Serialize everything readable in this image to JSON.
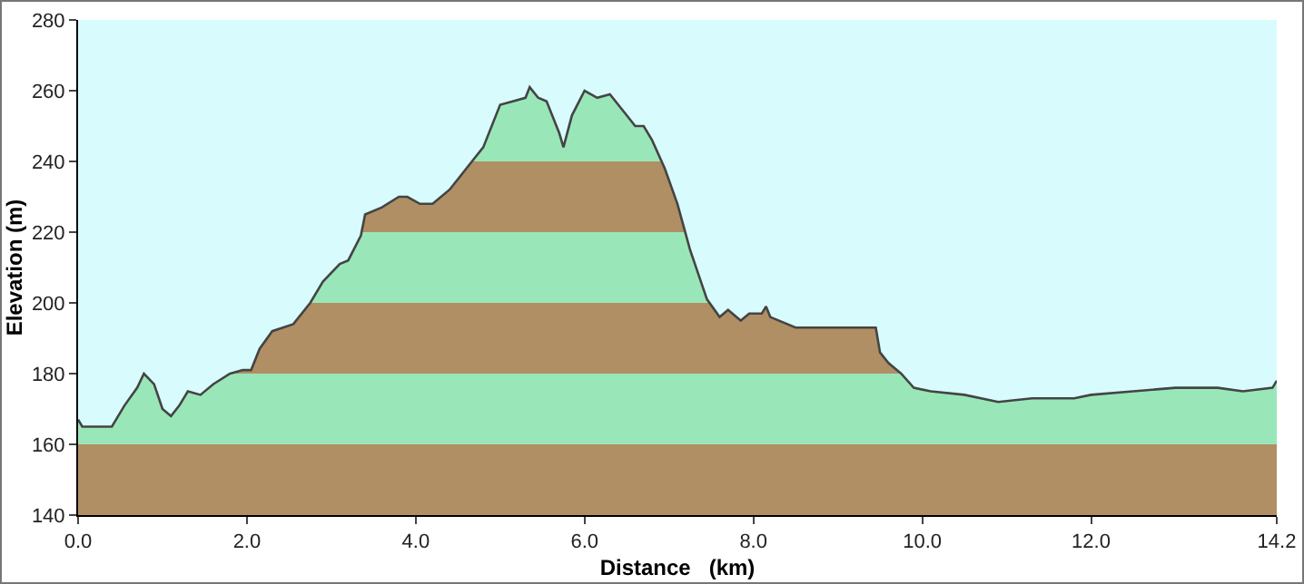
{
  "chart_data": {
    "type": "area",
    "xlabel": "Distance   (km)",
    "ylabel": "Elevation (m)",
    "x": [
      0,
      0.05,
      0.4,
      0.55,
      0.7,
      0.78,
      0.9,
      1.0,
      1.1,
      1.2,
      1.3,
      1.45,
      1.6,
      1.8,
      1.95,
      2.05,
      2.15,
      2.3,
      2.55,
      2.75,
      2.9,
      3.1,
      3.2,
      3.35,
      3.4,
      3.6,
      3.8,
      3.9,
      4.05,
      4.2,
      4.4,
      4.6,
      4.8,
      5.0,
      5.15,
      5.3,
      5.35,
      5.45,
      5.55,
      5.7,
      5.75,
      5.85,
      6.0,
      6.15,
      6.3,
      6.5,
      6.6,
      6.7,
      6.8,
      6.95,
      7.1,
      7.25,
      7.35,
      7.45,
      7.6,
      7.7,
      7.85,
      7.95,
      8.1,
      8.15,
      8.2,
      8.5,
      9.0,
      9.45,
      9.5,
      9.6,
      9.75,
      9.9,
      10.1,
      10.5,
      10.9,
      11.3,
      11.8,
      12.0,
      12.5,
      13.0,
      13.5,
      13.8,
      14.15,
      14.2
    ],
    "series": [
      {
        "color": "#444444",
        "values": [
          167,
          165,
          165,
          171,
          176,
          180,
          177,
          170,
          168,
          171,
          175,
          174,
          177,
          180,
          181,
          181,
          187,
          192,
          194,
          200,
          206,
          211,
          212,
          219,
          225,
          227,
          230,
          230,
          228,
          228,
          232,
          238,
          244,
          256,
          257,
          258,
          261,
          258,
          257,
          248,
          244,
          253,
          260,
          258,
          259,
          253,
          250,
          250,
          246,
          238,
          228,
          215,
          208,
          201,
          196,
          198,
          195,
          197,
          197,
          199,
          196,
          193,
          193,
          193,
          186,
          183,
          180,
          176,
          175,
          174,
          172,
          173,
          173,
          174,
          175,
          176,
          176,
          175,
          176,
          178
        ]
      }
    ],
    "bands": [
      {
        "axis": "y",
        "from": 140,
        "to": 160,
        "color": "#b89466"
      },
      {
        "axis": "y",
        "from": 160,
        "to": 180,
        "color": "#9ff2c0"
      },
      {
        "axis": "y",
        "from": 180,
        "to": 200,
        "color": "#b89466"
      },
      {
        "axis": "y",
        "from": 200,
        "to": 220,
        "color": "#9ff2c0"
      },
      {
        "axis": "y",
        "from": 220,
        "to": 240,
        "color": "#b89466"
      },
      {
        "axis": "y",
        "from": 240,
        "to": 280,
        "color": "#9ff2c0"
      }
    ],
    "xlim": [
      0,
      14.2
    ],
    "xticks": [
      {
        "value": 0,
        "label": "0.0"
      },
      {
        "value": 2,
        "label": "2.0"
      },
      {
        "value": 4,
        "label": "4.0"
      },
      {
        "value": 6,
        "label": "6.0"
      },
      {
        "value": 8,
        "label": "8.0"
      },
      {
        "value": 10,
        "label": "10.0"
      },
      {
        "value": 12,
        "label": "12.0"
      },
      {
        "value": 14.2,
        "label": "14.2"
      }
    ],
    "ylim": [
      140,
      280
    ],
    "yticks": [
      140,
      160,
      180,
      200,
      220,
      240,
      260,
      280
    ],
    "marker": "none",
    "line_style": "solid"
  }
}
